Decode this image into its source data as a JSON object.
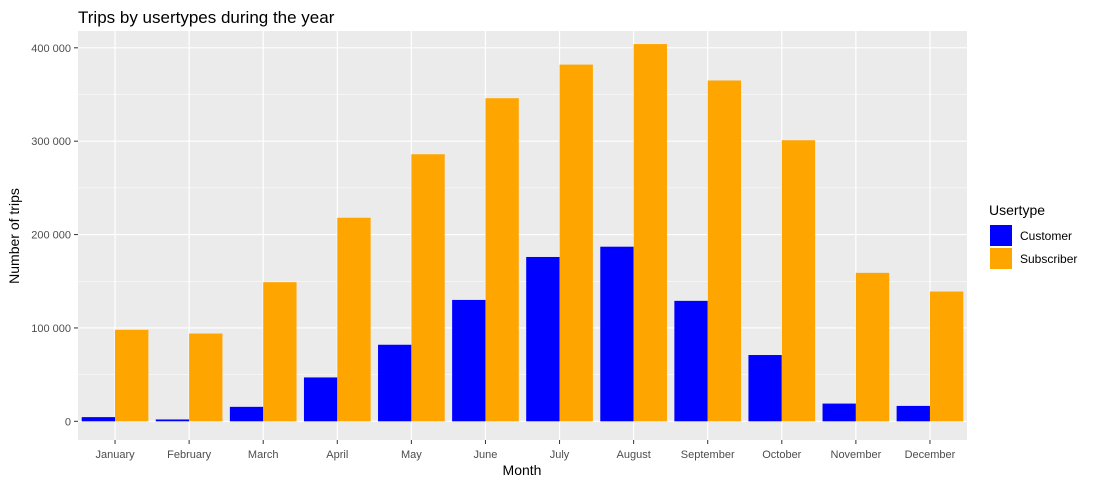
{
  "chart_data": {
    "type": "bar",
    "title": "Trips by usertypes during the year",
    "xlabel": "Month",
    "ylabel": "Number of trips",
    "categories": [
      "January",
      "February",
      "March",
      "April",
      "May",
      "June",
      "July",
      "August",
      "September",
      "October",
      "November",
      "December"
    ],
    "series": [
      {
        "name": "Customer",
        "color": "#0000FF",
        "values": [
          4500,
          2000,
          15500,
          47000,
          82000,
          130000,
          176000,
          187000,
          129000,
          71000,
          19000,
          16500
        ]
      },
      {
        "name": "Subscriber",
        "color": "#FFA500",
        "values": [
          98000,
          94000,
          149000,
          218000,
          286000,
          346000,
          382000,
          404000,
          365000,
          301000,
          159000,
          139000
        ]
      }
    ],
    "ylim": [
      -20000,
      418000
    ],
    "yticks": [
      0,
      100000,
      200000,
      300000,
      400000
    ],
    "ytick_labels": [
      "0",
      "100 000",
      "200 000",
      "300 000",
      "400 000"
    ],
    "grid": true,
    "panel_background": "#EBEBEB",
    "legend": {
      "title": "Usertype",
      "position": "right",
      "items": [
        "Customer",
        "Subscriber"
      ]
    }
  }
}
